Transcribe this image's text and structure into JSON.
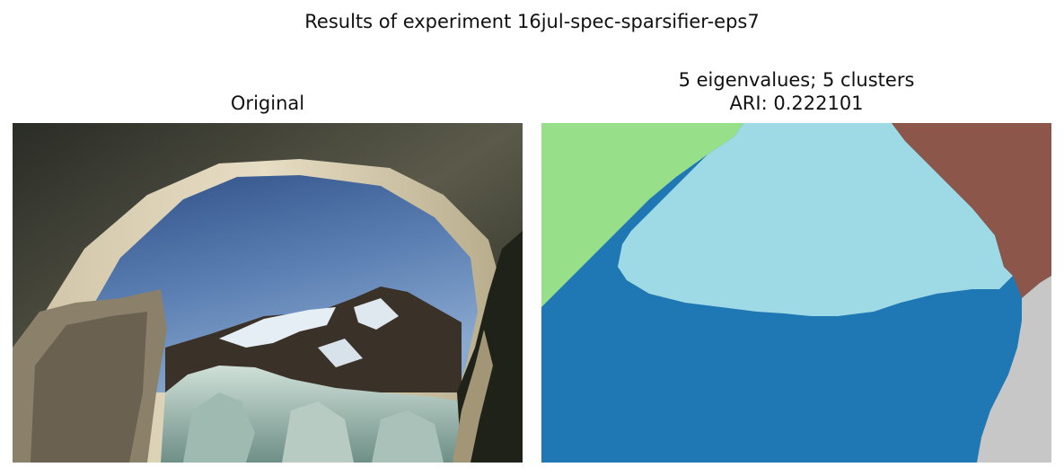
{
  "figure": {
    "suptitle": "Results of experiment 16jul-spec-sparsifier-eps7"
  },
  "left_panel": {
    "title": "Original"
  },
  "right_panel": {
    "title_line1": "5 eigenvalues; 5 clusters",
    "title_line2": "ARI: 0.222101"
  },
  "colors": {
    "cluster_dark_blue": "#1f77b4",
    "cluster_light_blue": "#9edae5",
    "cluster_green": "#98df8a",
    "cluster_brown": "#8c564b",
    "cluster_gray": "#c7c7c7"
  }
}
